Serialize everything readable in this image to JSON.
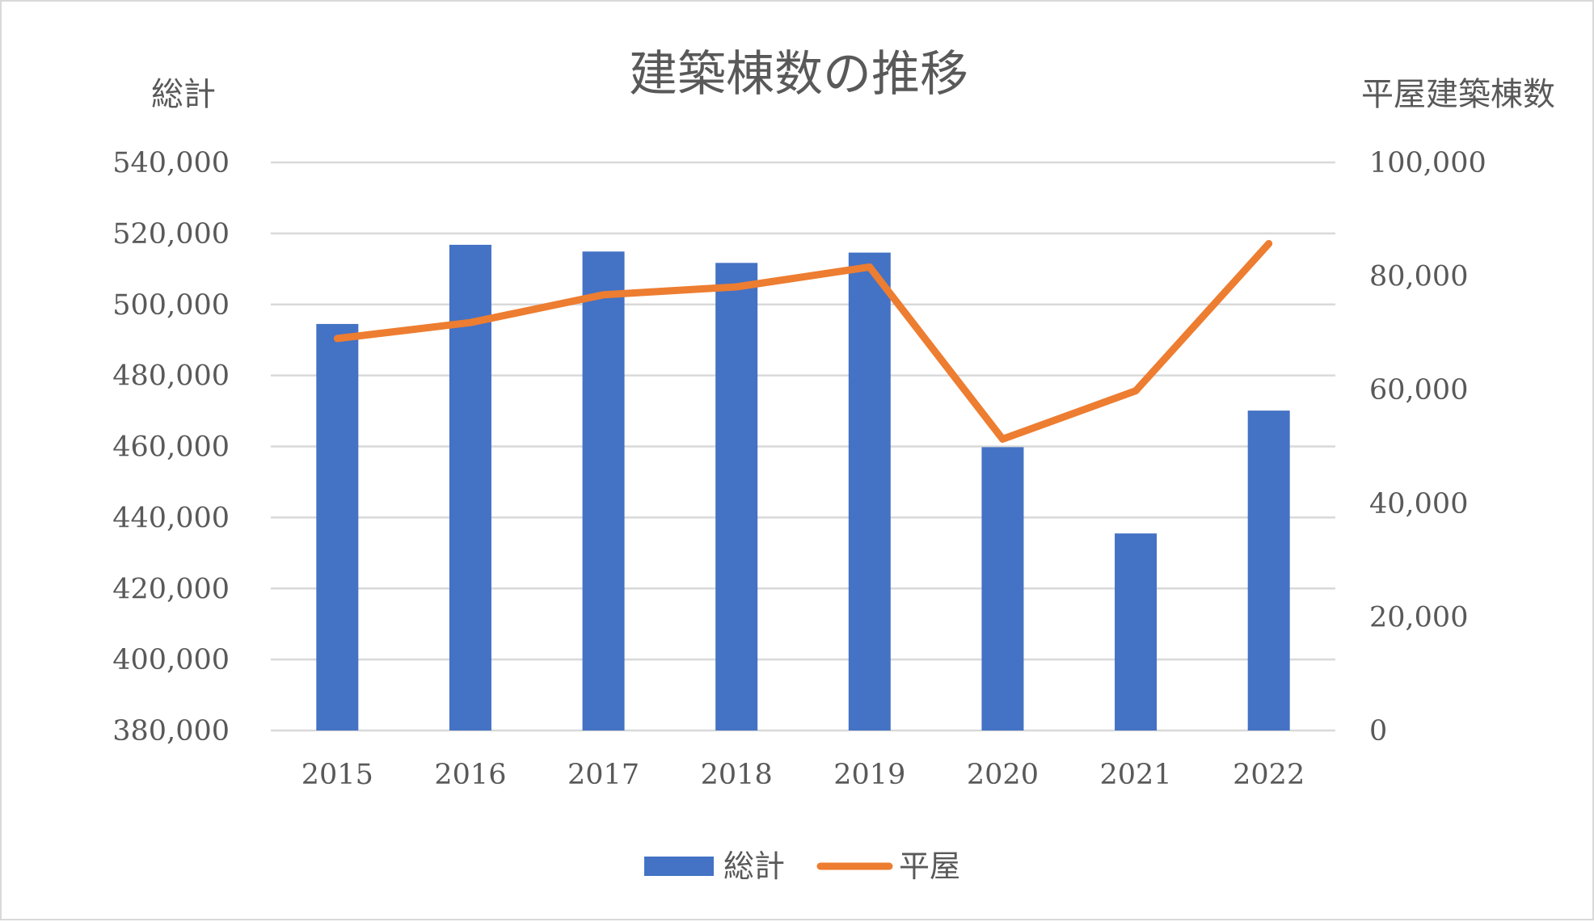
{
  "chart_data": {
    "type": "bar",
    "title": "建築棟数の推移",
    "ylabel": "総計",
    "y2label": "平屋建築棟数",
    "categories": [
      "2015",
      "2016",
      "2017",
      "2018",
      "2019",
      "2020",
      "2021",
      "2022"
    ],
    "series": [
      {
        "name": "総計",
        "type": "bar",
        "axis": "left",
        "color": "#4472C4",
        "values": [
          494500,
          516800,
          514900,
          511700,
          514600,
          459800,
          435500,
          470100
        ]
      },
      {
        "name": "平屋",
        "type": "line",
        "axis": "right",
        "color": "#ED7D31",
        "values": [
          69000,
          71800,
          76700,
          78100,
          81600,
          51300,
          59800,
          85700
        ]
      }
    ],
    "ylim": [
      380000,
      540000
    ],
    "y2lim": [
      0,
      100000
    ],
    "yticks": [
      "380,000",
      "400,000",
      "420,000",
      "440,000",
      "460,000",
      "480,000",
      "500,000",
      "520,000",
      "540,000"
    ],
    "y2ticks": [
      "0",
      "20,000",
      "40,000",
      "60,000",
      "80,000",
      "100,000"
    ],
    "grid": true,
    "legend_position": "bottom"
  }
}
